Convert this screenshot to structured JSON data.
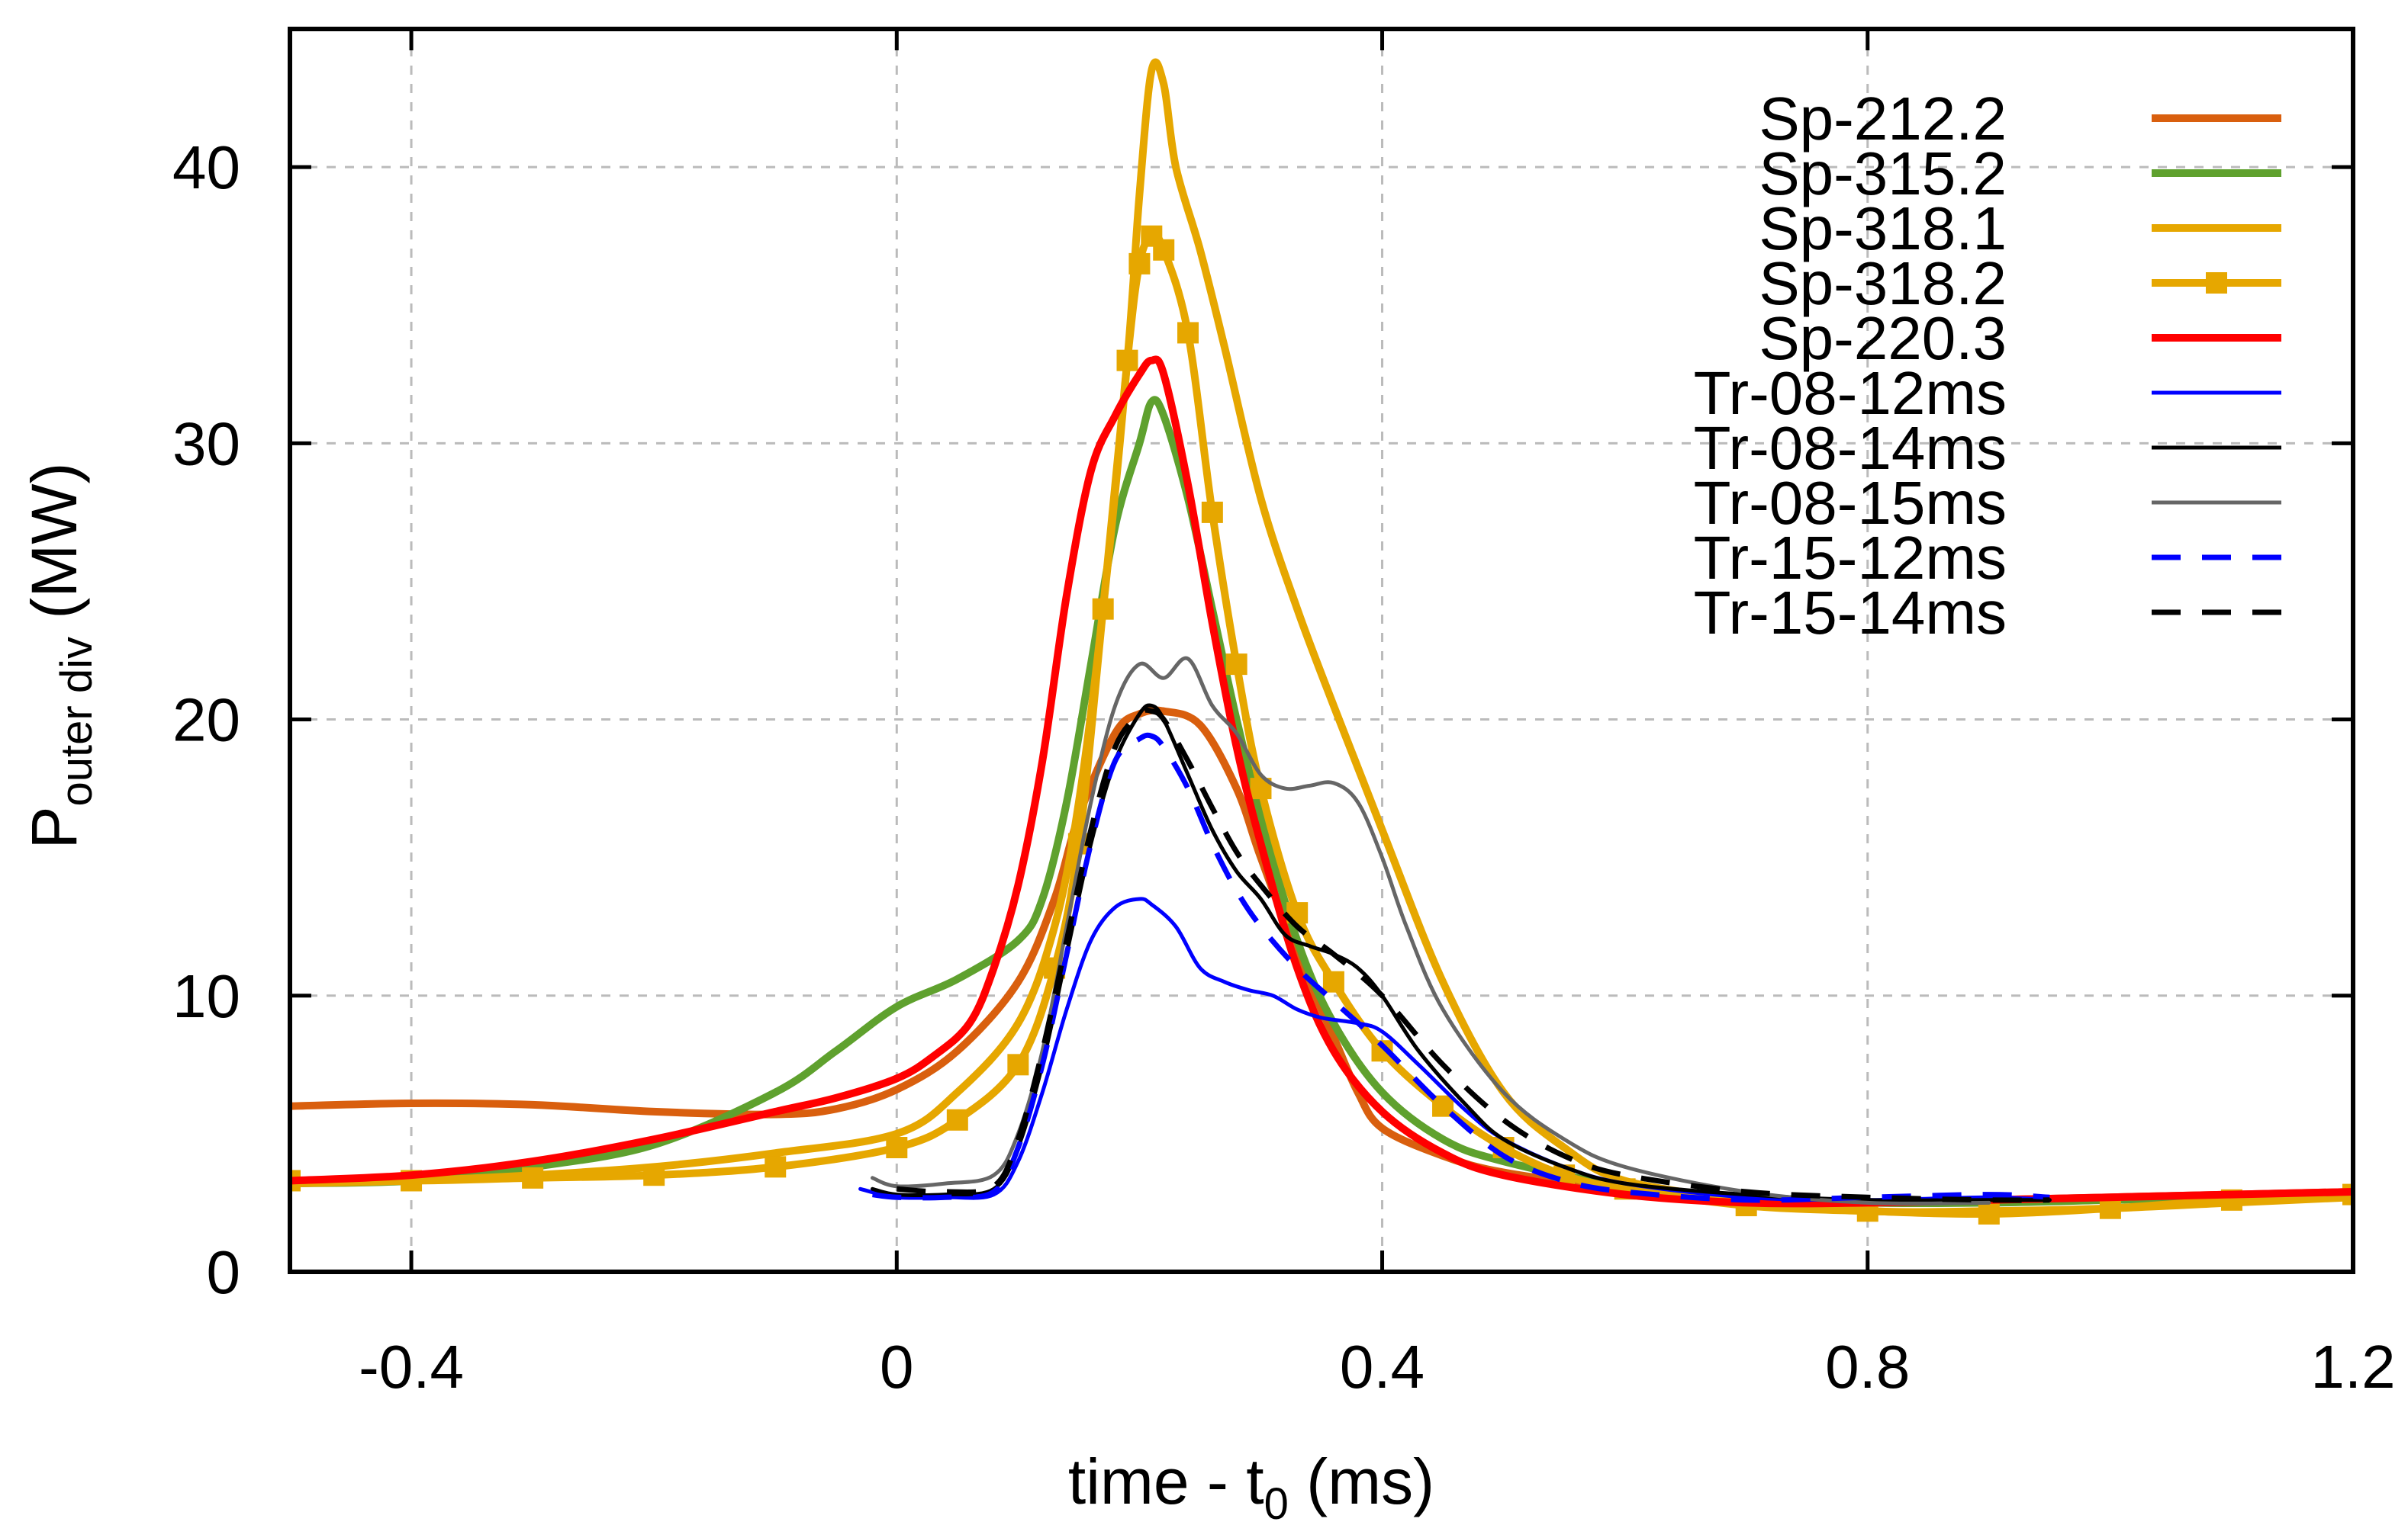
{
  "chart_data": {
    "type": "line",
    "title": "",
    "xlabel": {
      "main": "time - t",
      "sub": "0",
      "unit": " (ms)"
    },
    "ylabel": {
      "main": "P",
      "sub": "outer div",
      "unit": " (MW)"
    },
    "xlim": [
      -0.5,
      1.2
    ],
    "ylim": [
      0,
      45
    ],
    "grid": true,
    "legend_position": "top-right",
    "x_ticks": [
      -0.4,
      0,
      0.4,
      0.8,
      1.2
    ],
    "x_tick_labels": [
      "-0.4",
      "0",
      "0.4",
      "0.8",
      "1.2"
    ],
    "y_ticks": [
      0,
      10,
      20,
      30,
      40
    ],
    "y_tick_labels": [
      "0",
      "10",
      "20",
      "30",
      "40"
    ],
    "series": [
      {
        "name": "Sp-212.2",
        "color": "#d95f0e",
        "width": 10,
        "dash": "",
        "markers": false,
        "x": [
          -0.5,
          -0.4,
          -0.3,
          -0.2,
          -0.1,
          -0.05,
          0,
          0.05,
          0.1,
          0.13,
          0.15,
          0.18,
          0.2,
          0.22,
          0.25,
          0.28,
          0.3,
          0.33,
          0.36,
          0.38,
          0.4,
          0.45,
          0.5,
          0.6,
          0.7,
          0.8,
          0.9,
          1.0,
          1.1,
          1.2
        ],
        "y": [
          6.0,
          6.1,
          6.05,
          5.8,
          5.7,
          5.9,
          6.6,
          8.0,
          10.5,
          13.5,
          16.5,
          19.5,
          20.2,
          20.3,
          19.8,
          17.5,
          15.0,
          11.5,
          8.5,
          6.5,
          5.2,
          4.2,
          3.6,
          3.0,
          2.6,
          2.5,
          2.6,
          2.7,
          2.8,
          2.9
        ]
      },
      {
        "name": "Sp-315.2",
        "color": "#5fa12e",
        "width": 10,
        "dash": "",
        "markers": false,
        "x": [
          -0.5,
          -0.4,
          -0.3,
          -0.2,
          -0.1,
          -0.05,
          0,
          0.05,
          0.1,
          0.12,
          0.14,
          0.16,
          0.18,
          0.2,
          0.21,
          0.22,
          0.24,
          0.26,
          0.28,
          0.3,
          0.33,
          0.36,
          0.4,
          0.45,
          0.5,
          0.6,
          0.7,
          0.8,
          0.9,
          1.0,
          1.1,
          1.2
        ],
        "y": [
          3.2,
          3.3,
          3.8,
          4.6,
          6.5,
          8.0,
          9.6,
          10.6,
          12.0,
          13.5,
          17.0,
          22.0,
          27.0,
          30.0,
          31.5,
          31.0,
          28.0,
          24.0,
          20.0,
          16.5,
          12.0,
          9.0,
          6.5,
          4.8,
          4.0,
          3.1,
          2.7,
          2.5,
          2.5,
          2.6,
          2.7,
          2.8
        ]
      },
      {
        "name": "Sp-318.1",
        "color": "#e6a700",
        "width": 10,
        "dash": "",
        "markers": false,
        "x": [
          -0.5,
          -0.4,
          -0.3,
          -0.2,
          -0.1,
          0,
          0.05,
          0.1,
          0.13,
          0.15,
          0.17,
          0.19,
          0.2,
          0.21,
          0.22,
          0.23,
          0.25,
          0.27,
          0.3,
          0.33,
          0.36,
          0.4,
          0.45,
          0.5,
          0.55,
          0.6,
          0.7,
          0.8,
          0.9,
          1.0,
          1.1,
          1.2
        ],
        "y": [
          3.2,
          3.3,
          3.5,
          3.8,
          4.3,
          5.0,
          6.5,
          9.0,
          12.5,
          17.0,
          24.0,
          33.0,
          39.0,
          43.5,
          43.0,
          40.0,
          37.0,
          33.5,
          28.0,
          24.0,
          20.5,
          16.0,
          10.5,
          6.5,
          4.5,
          3.3,
          2.6,
          2.2,
          2.2,
          2.3,
          2.5,
          2.7
        ]
      },
      {
        "name": "Sp-318.2",
        "color": "#e6a700",
        "width": 10,
        "dash": "",
        "markers": true,
        "x": [
          -0.5,
          -0.4,
          -0.3,
          -0.2,
          -0.1,
          0,
          0.05,
          0.1,
          0.13,
          0.15,
          0.17,
          0.19,
          0.2,
          0.21,
          0.22,
          0.24,
          0.26,
          0.28,
          0.3,
          0.33,
          0.36,
          0.4,
          0.45,
          0.5,
          0.55,
          0.6,
          0.7,
          0.8,
          0.9,
          1.0,
          1.1,
          1.2
        ],
        "y": [
          3.3,
          3.3,
          3.4,
          3.5,
          3.8,
          4.5,
          5.5,
          7.5,
          11.0,
          15.5,
          24.0,
          33.0,
          36.5,
          37.5,
          37.0,
          34.0,
          27.5,
          22.0,
          17.5,
          13.0,
          10.5,
          8.0,
          6.0,
          4.5,
          3.5,
          3.0,
          2.4,
          2.2,
          2.1,
          2.3,
          2.6,
          2.8
        ]
      },
      {
        "name": "Sp-220.3",
        "color": "#ff0000",
        "width": 10,
        "dash": "",
        "markers": false,
        "x": [
          -0.5,
          -0.4,
          -0.3,
          -0.2,
          -0.1,
          -0.05,
          0,
          0.03,
          0.06,
          0.08,
          0.1,
          0.12,
          0.14,
          0.16,
          0.18,
          0.2,
          0.21,
          0.22,
          0.24,
          0.26,
          0.28,
          0.3,
          0.33,
          0.36,
          0.4,
          0.45,
          0.5,
          0.6,
          0.7,
          0.8,
          0.9,
          1.0,
          1.1,
          1.2
        ],
        "y": [
          3.3,
          3.5,
          4.0,
          4.8,
          5.8,
          6.3,
          7.0,
          7.8,
          9.0,
          11.0,
          14.0,
          18.5,
          24.5,
          29.0,
          31.0,
          32.5,
          33.0,
          32.5,
          28.5,
          23.5,
          19.0,
          15.5,
          11.0,
          8.0,
          5.8,
          4.3,
          3.5,
          2.8,
          2.5,
          2.5,
          2.6,
          2.7,
          2.8,
          2.9
        ]
      },
      {
        "name": "Tr-08-12ms",
        "color": "#0000ff",
        "width": 5,
        "dash": "",
        "markers": false,
        "x": [
          -0.03,
          0,
          0.04,
          0.08,
          0.1,
          0.12,
          0.14,
          0.16,
          0.18,
          0.2,
          0.21,
          0.23,
          0.25,
          0.27,
          0.29,
          0.31,
          0.33,
          0.35,
          0.38,
          0.4,
          0.43,
          0.47,
          0.5,
          0.55,
          0.6,
          0.7,
          0.8,
          0.9,
          0.95
        ],
        "y": [
          3.0,
          2.7,
          2.7,
          2.8,
          4.0,
          6.5,
          9.5,
          12.0,
          13.2,
          13.5,
          13.3,
          12.5,
          11.0,
          10.5,
          10.2,
          10.0,
          9.5,
          9.2,
          9.0,
          8.7,
          7.5,
          5.8,
          4.8,
          3.8,
          3.2,
          2.7,
          2.6,
          2.7,
          2.6
        ]
      },
      {
        "name": "Tr-08-14ms",
        "color": "#000000",
        "width": 5,
        "dash": "",
        "markers": false,
        "x": [
          -0.02,
          0,
          0.04,
          0.08,
          0.1,
          0.12,
          0.14,
          0.16,
          0.18,
          0.2,
          0.21,
          0.22,
          0.24,
          0.26,
          0.28,
          0.3,
          0.32,
          0.34,
          0.36,
          0.38,
          0.4,
          0.43,
          0.47,
          0.5,
          0.55,
          0.6,
          0.7,
          0.8,
          0.9,
          0.95
        ],
        "y": [
          3.0,
          2.8,
          2.8,
          3.0,
          4.5,
          7.5,
          11.5,
          15.5,
          18.5,
          20.2,
          20.5,
          20.0,
          18.0,
          16.0,
          14.5,
          13.5,
          12.2,
          11.8,
          11.5,
          11.0,
          10.0,
          8.0,
          6.0,
          4.8,
          3.8,
          3.2,
          2.8,
          2.6,
          2.6,
          2.6
        ]
      },
      {
        "name": "Tr-08-15ms",
        "color": "#666666",
        "width": 5,
        "dash": "",
        "markers": false,
        "x": [
          -0.02,
          0,
          0.04,
          0.08,
          0.1,
          0.12,
          0.14,
          0.16,
          0.18,
          0.2,
          0.22,
          0.24,
          0.26,
          0.28,
          0.3,
          0.32,
          0.34,
          0.36,
          0.38,
          0.4,
          0.42,
          0.45,
          0.5,
          0.55,
          0.6,
          0.7,
          0.8,
          0.9
        ],
        "y": [
          3.4,
          3.1,
          3.2,
          3.5,
          5.0,
          8.0,
          12.5,
          17.0,
          20.5,
          22.0,
          21.5,
          22.2,
          20.5,
          19.5,
          18.0,
          17.5,
          17.6,
          17.7,
          17.0,
          15.0,
          12.5,
          9.5,
          6.5,
          4.8,
          3.8,
          2.9,
          2.5,
          2.5
        ]
      },
      {
        "name": "Tr-15-12ms",
        "color": "#0000ff",
        "width": 7,
        "dash": "38 28",
        "markers": false,
        "x": [
          -0.02,
          0,
          0.04,
          0.08,
          0.1,
          0.12,
          0.14,
          0.16,
          0.18,
          0.2,
          0.21,
          0.22,
          0.24,
          0.26,
          0.28,
          0.3,
          0.33,
          0.36,
          0.4,
          0.45,
          0.5,
          0.55,
          0.6,
          0.7,
          0.8,
          0.9,
          0.95
        ],
        "y": [
          2.8,
          2.7,
          2.7,
          2.9,
          4.5,
          7.5,
          11.5,
          15.5,
          18.5,
          19.3,
          19.4,
          19.0,
          17.5,
          15.5,
          13.8,
          12.5,
          11.0,
          9.8,
          8.2,
          6.0,
          4.2,
          3.3,
          2.9,
          2.6,
          2.7,
          2.8,
          2.7
        ]
      },
      {
        "name": "Tr-15-14ms",
        "color": "#000000",
        "width": 7,
        "dash": "38 28",
        "markers": false,
        "x": [
          0,
          0.04,
          0.08,
          0.1,
          0.12,
          0.14,
          0.16,
          0.18,
          0.2,
          0.21,
          0.22,
          0.24,
          0.26,
          0.28,
          0.3,
          0.33,
          0.36,
          0.4,
          0.45,
          0.5,
          0.55,
          0.6,
          0.7,
          0.8,
          0.9,
          0.95
        ],
        "y": [
          3.0,
          2.9,
          3.1,
          4.8,
          8.0,
          12.0,
          16.0,
          19.0,
          20.2,
          20.3,
          20.0,
          18.5,
          16.8,
          15.2,
          14.0,
          12.5,
          11.5,
          10.0,
          7.5,
          5.5,
          4.2,
          3.5,
          2.9,
          2.7,
          2.6,
          2.6
        ]
      }
    ]
  }
}
